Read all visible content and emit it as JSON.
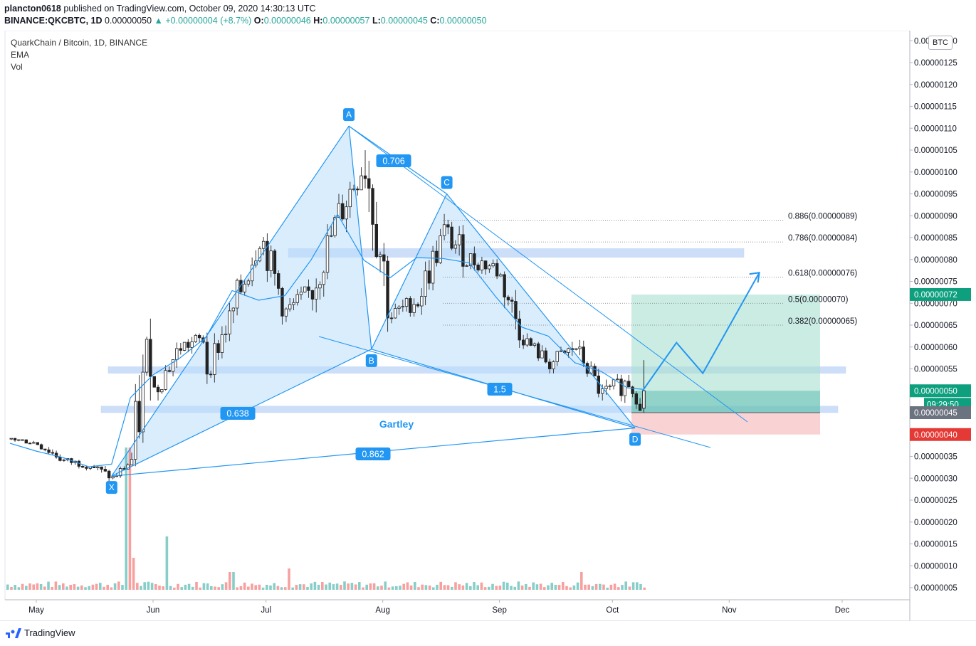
{
  "header": {
    "publisher": "plancton0618",
    "published_text": "published on TradingView.com, October 09, 2020 14:30:13 UTC"
  },
  "ohlc": {
    "symbol": "BINANCE:QKCBTC, 1D",
    "last": "0.00000050",
    "change": "+0.00000004 (+8.7%)",
    "o_label": "O:",
    "o": "0.00000046",
    "h_label": "H:",
    "h": "0.00000057",
    "l_label": "L:",
    "l": "0.00000045",
    "c_label": "C:",
    "c": "0.00000050"
  },
  "legend": {
    "title": "QuarkChain / Bitcoin, 1D, BINANCE",
    "ind1": "EMA",
    "ind2": "Vol"
  },
  "currency_badge": "BTC",
  "footer": {
    "brand": "TradingView"
  },
  "colors": {
    "up": "#26a69a",
    "down": "#ef5350",
    "pattern": "#2196f3",
    "pattern_fill": "#bbdefb",
    "zone": "#90b8f0",
    "target_fill": "#a8e0cf",
    "stop_fill": "#f8c8c8"
  },
  "chart_data": {
    "type": "candlestick",
    "x_axis": {
      "labels": [
        "May",
        "Jun",
        "Jul",
        "Aug",
        "Sep",
        "Oct",
        "Nov",
        "Dec"
      ]
    },
    "y_axis": {
      "unit": "BTC",
      "range": [
        2e-08,
        1.32e-06
      ],
      "ticks": [
        "0.00000005",
        "0.00000010",
        "0.00000015",
        "0.00000020",
        "0.00000025",
        "0.00000030",
        "0.00000035",
        "0.00000040",
        "0.00000045",
        "0.00000050",
        "0.00000055",
        "0.00000060",
        "0.00000065",
        "0.00000070",
        "0.00000075",
        "0.00000080",
        "0.00000085",
        "0.00000090",
        "0.00000095",
        "0.00000100",
        "0.00000105",
        "0.00000110",
        "0.00000115",
        "0.00000120",
        "0.00000125",
        "0.00000130"
      ]
    },
    "price_labels": {
      "target": "0.00000072",
      "last": "0.00000050",
      "countdown": "09:29:50",
      "low": "0.00000045",
      "stop": "0.00000040"
    },
    "pattern": {
      "name": "Gartley",
      "points": [
        {
          "label": "X",
          "date": "2020-05-21",
          "price": 3.05e-07
        },
        {
          "label": "A",
          "date": "2020-07-23",
          "price": 1.105e-06
        },
        {
          "label": "B",
          "date": "2020-07-29",
          "price": 5.95e-07
        },
        {
          "label": "C",
          "date": "2020-08-18",
          "price": 9.5e-07
        },
        {
          "label": "D",
          "date": "2020-10-07",
          "price": 4.15e-07
        }
      ],
      "ratios": [
        {
          "value": "0.706",
          "between": "A-C"
        },
        {
          "value": "0.638",
          "between": "X-B"
        },
        {
          "value": "1.5",
          "between": "B-D"
        },
        {
          "value": "0.862",
          "between": "X-D"
        }
      ]
    },
    "fib_levels": [
      {
        "ratio": "0.886",
        "label": "0.886(0.00000089)",
        "price": 8.9e-07
      },
      {
        "ratio": "0.786",
        "label": "0.786(0.00000084)",
        "price": 8.4e-07
      },
      {
        "ratio": "0.618",
        "label": "0.618(0.00000076)",
        "price": 7.6e-07
      },
      {
        "ratio": "0.5",
        "label": "0.5(0.00000070)",
        "price": 7e-07
      },
      {
        "ratio": "0.382",
        "label": "0.382(0.00000065)",
        "price": 6.5e-07
      }
    ],
    "zones": [
      {
        "price_low": 8.05e-07,
        "price_high": 8.25e-07
      },
      {
        "price_low": 5.4e-07,
        "price_high": 5.55e-07
      },
      {
        "price_low": 4.5e-07,
        "price_high": 4.65e-07
      }
    ],
    "position": {
      "entry": 4.5e-07,
      "target": 7.2e-07,
      "stop": 4e-07
    },
    "projection": [
      {
        "date": "2020-10-09",
        "price": 5e-07
      },
      {
        "date": "2020-10-18",
        "price": 6.1e-07
      },
      {
        "date": "2020-10-25",
        "price": 5.4e-07
      },
      {
        "date": "2020-11-09",
        "price": 7.7e-07
      }
    ],
    "candles": [
      {
        "date": "2020-04-24",
        "o": 3.9e-07,
        "h": 4e-07,
        "l": 3.7e-07,
        "c": 3.8e-07
      },
      {
        "date": "2020-05-01",
        "o": 3.8e-07,
        "h": 3.9e-07,
        "l": 3.3e-07,
        "c": 3.4e-07
      },
      {
        "date": "2020-05-08",
        "o": 3.4e-07,
        "h": 3.6e-07,
        "l": 3.1e-07,
        "c": 3.3e-07
      },
      {
        "date": "2020-05-15",
        "o": 3.3e-07,
        "h": 3.4e-07,
        "l": 2.8e-07,
        "c": 3e-07
      },
      {
        "date": "2020-05-21",
        "o": 3e-07,
        "h": 3.5e-07,
        "l": 2.9e-07,
        "c": 3.4e-07
      },
      {
        "date": "2020-05-26",
        "o": 3.4e-07,
        "h": 7.8e-07,
        "l": 3e-07,
        "c": 6.7e-07
      },
      {
        "date": "2020-06-01",
        "o": 5e-07,
        "h": 6.2e-07,
        "l": 4.7e-07,
        "c": 6e-07
      },
      {
        "date": "2020-06-08",
        "o": 6e-07,
        "h": 6.6e-07,
        "l": 5.5e-07,
        "c": 6.2e-07
      },
      {
        "date": "2020-06-15",
        "o": 5.5e-07,
        "h": 7e-07,
        "l": 5.2e-07,
        "c": 6.8e-07
      },
      {
        "date": "2020-06-22",
        "o": 6.8e-07,
        "h": 9.1e-07,
        "l": 6.4e-07,
        "c": 8.6e-07
      },
      {
        "date": "2020-06-29",
        "o": 8.6e-07,
        "h": 8.9e-07,
        "l": 6.6e-07,
        "c": 6.8e-07
      },
      {
        "date": "2020-07-06",
        "o": 6.8e-07,
        "h": 7.8e-07,
        "l": 6.5e-07,
        "c": 7.3e-07
      },
      {
        "date": "2020-07-13",
        "o": 7.3e-07,
        "h": 9.5e-07,
        "l": 7e-07,
        "c": 9e-07
      },
      {
        "date": "2020-07-20",
        "o": 9e-07,
        "h": 1.11e-06,
        "l": 8.6e-07,
        "c": 1.03e-06
      },
      {
        "date": "2020-07-27",
        "o": 1.03e-06,
        "h": 1.06e-06,
        "l": 5.9e-07,
        "c": 6.7e-07
      },
      {
        "date": "2020-08-03",
        "o": 6.7e-07,
        "h": 7.5e-07,
        "l": 6.3e-07,
        "c": 7.1e-07
      },
      {
        "date": "2020-08-10",
        "o": 7.1e-07,
        "h": 9e-07,
        "l": 6.8e-07,
        "c": 8.6e-07
      },
      {
        "date": "2020-08-17",
        "o": 8.6e-07,
        "h": 9.5e-07,
        "l": 7.5e-07,
        "c": 8e-07
      },
      {
        "date": "2020-08-24",
        "o": 8e-07,
        "h": 8.7e-07,
        "l": 7.4e-07,
        "c": 7.8e-07
      },
      {
        "date": "2020-08-31",
        "o": 7.8e-07,
        "h": 8e-07,
        "l": 6e-07,
        "c": 6.2e-07
      },
      {
        "date": "2020-09-07",
        "o": 6.2e-07,
        "h": 6.4e-07,
        "l": 5.4e-07,
        "c": 5.6e-07
      },
      {
        "date": "2020-09-14",
        "o": 5.6e-07,
        "h": 6.7e-07,
        "l": 5.5e-07,
        "c": 6e-07
      },
      {
        "date": "2020-09-21",
        "o": 6e-07,
        "h": 6e-07,
        "l": 4.6e-07,
        "c": 4.9e-07
      },
      {
        "date": "2020-09-28",
        "o": 4.9e-07,
        "h": 6e-07,
        "l": 4.7e-07,
        "c": 5.2e-07
      },
      {
        "date": "2020-10-05",
        "o": 5.2e-07,
        "h": 5.3e-07,
        "l": 4.1e-07,
        "c": 4.6e-07
      },
      {
        "date": "2020-10-09",
        "o": 4.6e-07,
        "h": 5.7e-07,
        "l": 4.5e-07,
        "c": 5e-07
      }
    ]
  }
}
